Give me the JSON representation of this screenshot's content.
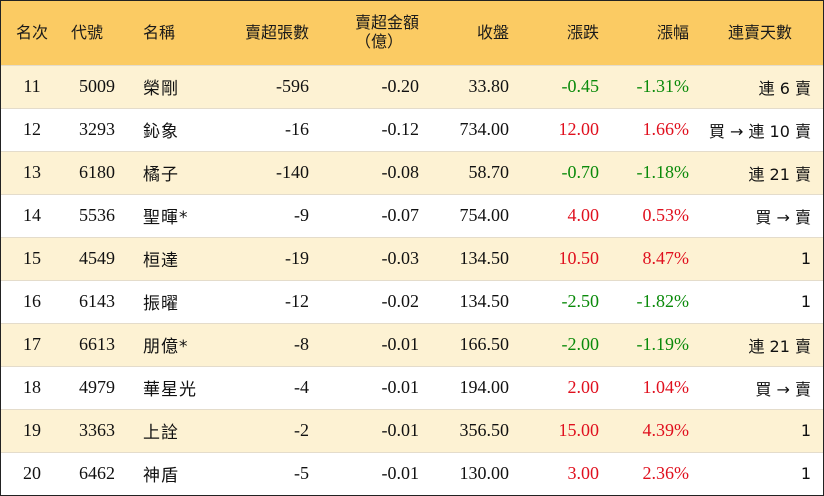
{
  "header": {
    "rank": "名次",
    "code": "代號",
    "name": "名稱",
    "net_sell_lots": "賣超張數",
    "net_sell_amount_line1": "賣超金額",
    "net_sell_amount_line2": "（億）",
    "close": "收盤",
    "change": "漲跌",
    "change_pct": "漲幅",
    "streak": "連賣天數"
  },
  "colors": {
    "header_bg": "#fbcb63",
    "stripe_bg": "#fdf2d3",
    "up": "#e0101e",
    "down": "#0a8a0a"
  },
  "rows": [
    {
      "rank": "11",
      "code": "5009",
      "name": "榮剛",
      "lots": "-596",
      "amount": "-0.20",
      "close": "33.80",
      "change": "-0.45",
      "pct": "-1.31%",
      "dir": "down",
      "streak": "連 6 賣"
    },
    {
      "rank": "12",
      "code": "3293",
      "name": "鈊象",
      "lots": "-16",
      "amount": "-0.12",
      "close": "734.00",
      "change": "12.00",
      "pct": "1.66%",
      "dir": "up",
      "streak": "買 → 連 10 賣"
    },
    {
      "rank": "13",
      "code": "6180",
      "name": "橘子",
      "lots": "-140",
      "amount": "-0.08",
      "close": "58.70",
      "change": "-0.70",
      "pct": "-1.18%",
      "dir": "down",
      "streak": "連 21 賣"
    },
    {
      "rank": "14",
      "code": "5536",
      "name": "聖暉*",
      "lots": "-9",
      "amount": "-0.07",
      "close": "754.00",
      "change": "4.00",
      "pct": "0.53%",
      "dir": "up",
      "streak": "買 → 賣"
    },
    {
      "rank": "15",
      "code": "4549",
      "name": "桓達",
      "lots": "-19",
      "amount": "-0.03",
      "close": "134.50",
      "change": "10.50",
      "pct": "8.47%",
      "dir": "up",
      "streak": "1"
    },
    {
      "rank": "16",
      "code": "6143",
      "name": "振曜",
      "lots": "-12",
      "amount": "-0.02",
      "close": "134.50",
      "change": "-2.50",
      "pct": "-1.82%",
      "dir": "down",
      "streak": "1"
    },
    {
      "rank": "17",
      "code": "6613",
      "name": "朋億*",
      "lots": "-8",
      "amount": "-0.01",
      "close": "166.50",
      "change": "-2.00",
      "pct": "-1.19%",
      "dir": "down",
      "streak": "連 21 賣"
    },
    {
      "rank": "18",
      "code": "4979",
      "name": "華星光",
      "lots": "-4",
      "amount": "-0.01",
      "close": "194.00",
      "change": "2.00",
      "pct": "1.04%",
      "dir": "up",
      "streak": "買 → 賣"
    },
    {
      "rank": "19",
      "code": "3363",
      "name": "上詮",
      "lots": "-2",
      "amount": "-0.01",
      "close": "356.50",
      "change": "15.00",
      "pct": "4.39%",
      "dir": "up",
      "streak": "1"
    },
    {
      "rank": "20",
      "code": "6462",
      "name": "神盾",
      "lots": "-5",
      "amount": "-0.01",
      "close": "130.00",
      "change": "3.00",
      "pct": "2.36%",
      "dir": "up",
      "streak": "1"
    }
  ]
}
